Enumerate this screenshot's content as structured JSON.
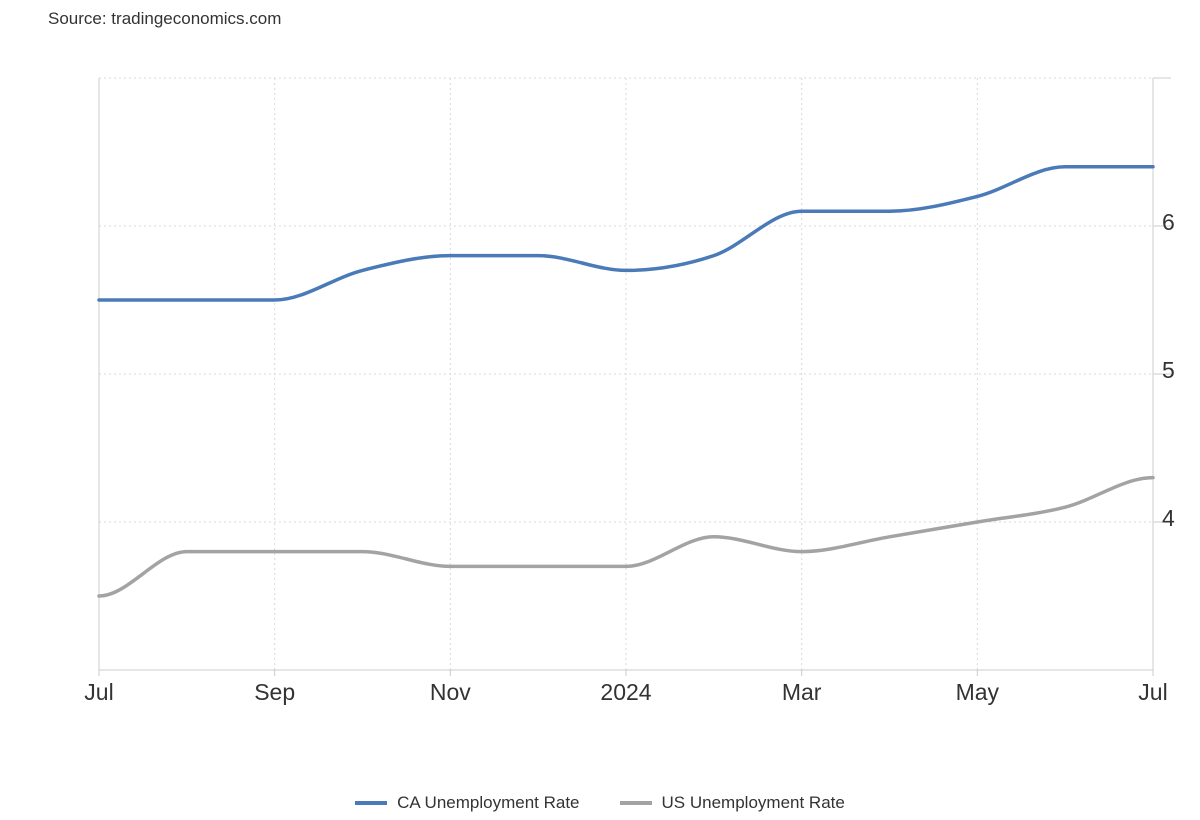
{
  "source": "Source: tradingeconomics.com",
  "colors": {
    "ca": "#4a7ab8",
    "us": "#a3a3a3",
    "grid": "#d9d9d9"
  },
  "chart_data": {
    "type": "line",
    "x": [
      "2023-07",
      "2023-08",
      "2023-09",
      "2023-10",
      "2023-11",
      "2023-12",
      "2024-01",
      "2024-02",
      "2024-03",
      "2024-04",
      "2024-05",
      "2024-06",
      "2024-07"
    ],
    "series": [
      {
        "name": "CA Unemployment Rate",
        "values": [
          5.5,
          5.5,
          5.5,
          5.7,
          5.8,
          5.8,
          5.7,
          5.8,
          6.1,
          6.1,
          6.2,
          6.4,
          6.4
        ]
      },
      {
        "name": "US Unemployment Rate",
        "values": [
          3.5,
          3.8,
          3.8,
          3.8,
          3.7,
          3.7,
          3.7,
          3.9,
          3.8,
          3.9,
          4.0,
          4.1,
          4.3
        ]
      }
    ],
    "x_tick_labels": [
      {
        "label": "Jul",
        "at": "2023-07"
      },
      {
        "label": "Sep",
        "at": "2023-09"
      },
      {
        "label": "Nov",
        "at": "2023-11"
      },
      {
        "label": "2024",
        "at": "2024-01"
      },
      {
        "label": "Mar",
        "at": "2024-03"
      },
      {
        "label": "May",
        "at": "2024-05"
      },
      {
        "label": "Jul",
        "at": "2024-07"
      }
    ],
    "y_ticks": [
      4,
      5,
      6
    ],
    "ylim": [
      3.0,
      7.0
    ],
    "grid": true,
    "legend_position": "bottom-center"
  }
}
